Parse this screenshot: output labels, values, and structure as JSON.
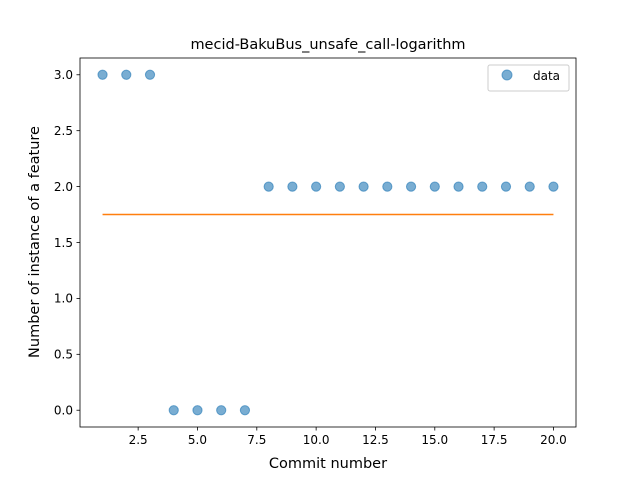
{
  "chart_data": {
    "type": "scatter",
    "title": "mecid-BakuBus_unsafe_call-logarithm",
    "xlabel": "Commit number",
    "ylabel": "Number of instance of a feature",
    "xlim": [
      0.05,
      20.95
    ],
    "ylim": [
      -0.15,
      3.15
    ],
    "xticks": [
      2.5,
      5.0,
      7.5,
      10.0,
      12.5,
      15.0,
      17.5,
      20.0
    ],
    "xtick_labels": [
      "2.5",
      "5.0",
      "7.5",
      "10.0",
      "12.5",
      "15.0",
      "17.5",
      "20.0"
    ],
    "yticks": [
      0.0,
      0.5,
      1.0,
      1.5,
      2.0,
      2.5,
      3.0
    ],
    "ytick_labels": [
      "0.0",
      "0.5",
      "1.0",
      "1.5",
      "2.0",
      "2.5",
      "3.0"
    ],
    "grid": false,
    "legend_position": "top-right",
    "series": [
      {
        "name": "data",
        "kind": "scatter",
        "color": "#1f77b4",
        "x": [
          1,
          2,
          3,
          4,
          5,
          6,
          7,
          8,
          9,
          10,
          11,
          12,
          13,
          14,
          15,
          16,
          17,
          18,
          19,
          20
        ],
        "y": [
          3,
          3,
          3,
          0,
          0,
          0,
          0,
          2,
          2,
          2,
          2,
          2,
          2,
          2,
          2,
          2,
          2,
          2,
          2,
          2
        ]
      },
      {
        "kind": "line",
        "color": "#ff7f0e",
        "x": [
          1,
          20
        ],
        "y": [
          1.75,
          1.75
        ]
      }
    ]
  }
}
